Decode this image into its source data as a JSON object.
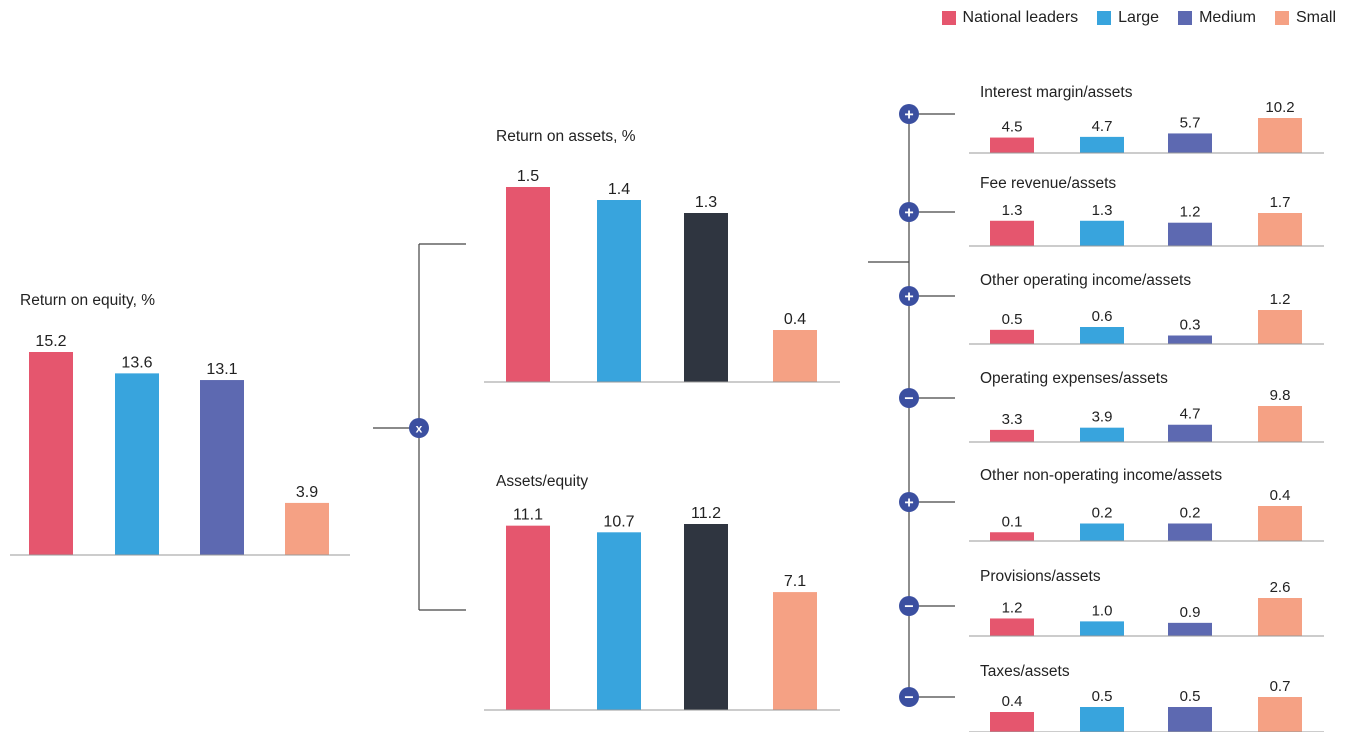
{
  "legend": [
    {
      "label": "National leaders",
      "color": "#e5566e"
    },
    {
      "label": "Large",
      "color": "#38a4dd"
    },
    {
      "label": "Medium",
      "color": "#5d69b1"
    },
    {
      "label": "Small",
      "color": "#f5a184"
    }
  ],
  "operators": {
    "multiply": "x",
    "plus": "+",
    "minus": "−"
  },
  "chart_data": [
    {
      "id": "roe",
      "type": "bar",
      "title": "Return on equity, %",
      "categories": [
        "National leaders",
        "Large",
        "Medium",
        "Small"
      ],
      "values": [
        15.2,
        13.6,
        13.1,
        3.9
      ],
      "value_labels": [
        "15.2",
        "13.6",
        "13.1",
        "3.9"
      ],
      "colors": [
        "#e5566e",
        "#38a4dd",
        "#5d69b1",
        "#f5a184"
      ]
    },
    {
      "id": "roa",
      "type": "bar",
      "title": "Return on assets, %",
      "categories": [
        "National leaders",
        "Large",
        "Medium",
        "Small"
      ],
      "values": [
        1.5,
        1.4,
        1.3,
        0.4
      ],
      "value_labels": [
        "1.5",
        "1.4",
        "1.3",
        "0.4"
      ],
      "colors": [
        "#e5566e",
        "#38a4dd",
        "#2f3540",
        "#f5a184"
      ]
    },
    {
      "id": "ae",
      "type": "bar",
      "title": "Assets/equity",
      "categories": [
        "National leaders",
        "Large",
        "Medium",
        "Small"
      ],
      "values": [
        11.1,
        10.7,
        11.2,
        7.1
      ],
      "value_labels": [
        "11.1",
        "10.7",
        "11.2",
        "7.1"
      ],
      "colors": [
        "#e5566e",
        "#38a4dd",
        "#2f3540",
        "#f5a184"
      ]
    },
    {
      "id": "int",
      "type": "bar",
      "title": "Interest margin/assets",
      "operator": "plus",
      "categories": [
        "National leaders",
        "Large",
        "Medium",
        "Small"
      ],
      "values": [
        4.5,
        4.7,
        5.7,
        10.2
      ],
      "value_labels": [
        "4.5",
        "4.7",
        "5.7",
        "10.2"
      ],
      "colors": [
        "#e5566e",
        "#38a4dd",
        "#5d69b1",
        "#f5a184"
      ]
    },
    {
      "id": "fee",
      "type": "bar",
      "title": "Fee revenue/assets",
      "operator": "plus",
      "categories": [
        "National leaders",
        "Large",
        "Medium",
        "Small"
      ],
      "values": [
        1.3,
        1.3,
        1.2,
        1.7
      ],
      "value_labels": [
        "1.3",
        "1.3",
        "1.2",
        "1.7"
      ],
      "colors": [
        "#e5566e",
        "#38a4dd",
        "#5d69b1",
        "#f5a184"
      ]
    },
    {
      "id": "ooi",
      "type": "bar",
      "title": "Other operating income/assets",
      "operator": "plus",
      "categories": [
        "National leaders",
        "Large",
        "Medium",
        "Small"
      ],
      "values": [
        0.5,
        0.6,
        0.3,
        1.2
      ],
      "value_labels": [
        "0.5",
        "0.6",
        "0.3",
        "1.2"
      ],
      "colors": [
        "#e5566e",
        "#38a4dd",
        "#5d69b1",
        "#f5a184"
      ]
    },
    {
      "id": "opex",
      "type": "bar",
      "title": "Operating expenses/assets",
      "operator": "minus",
      "categories": [
        "National leaders",
        "Large",
        "Medium",
        "Small"
      ],
      "values": [
        3.3,
        3.9,
        4.7,
        9.8
      ],
      "value_labels": [
        "3.3",
        "3.9",
        "4.7",
        "9.8"
      ],
      "colors": [
        "#e5566e",
        "#38a4dd",
        "#5d69b1",
        "#f5a184"
      ]
    },
    {
      "id": "noi",
      "type": "bar",
      "title": "Other non-operating income/assets",
      "operator": "plus",
      "categories": [
        "National leaders",
        "Large",
        "Medium",
        "Small"
      ],
      "values": [
        0.1,
        0.2,
        0.2,
        0.4
      ],
      "value_labels": [
        "0.1",
        "0.2",
        "0.2",
        "0.4"
      ],
      "colors": [
        "#e5566e",
        "#38a4dd",
        "#5d69b1",
        "#f5a184"
      ]
    },
    {
      "id": "prov",
      "type": "bar",
      "title": "Provisions/assets",
      "operator": "minus",
      "categories": [
        "National leaders",
        "Large",
        "Medium",
        "Small"
      ],
      "values": [
        1.2,
        1.0,
        0.9,
        2.6
      ],
      "value_labels": [
        "1.2",
        "1.0",
        "0.9",
        "2.6"
      ],
      "colors": [
        "#e5566e",
        "#38a4dd",
        "#5d69b1",
        "#f5a184"
      ]
    },
    {
      "id": "tax",
      "type": "bar",
      "title": "Taxes/assets",
      "operator": "minus",
      "categories": [
        "National leaders",
        "Large",
        "Medium",
        "Small"
      ],
      "values": [
        0.4,
        0.5,
        0.5,
        0.7
      ],
      "value_labels": [
        "0.4",
        "0.5",
        "0.5",
        "0.7"
      ],
      "colors": [
        "#e5566e",
        "#38a4dd",
        "#5d69b1",
        "#f5a184"
      ]
    }
  ]
}
